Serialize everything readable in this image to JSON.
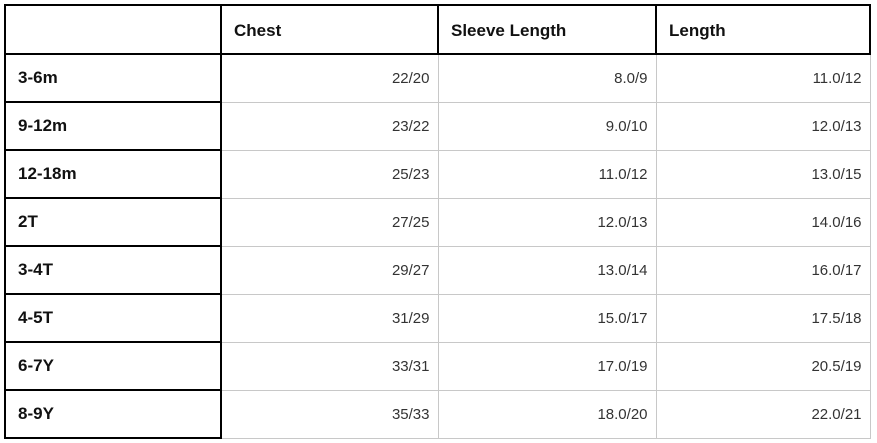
{
  "table": {
    "headers": [
      "",
      "Chest",
      "Sleeve Length",
      "Length"
    ],
    "rows": [
      {
        "size": "3-6m",
        "chest": "22/20",
        "sleeve": "8.0/9",
        "length": "11.0/12"
      },
      {
        "size": "9-12m",
        "chest": "23/22",
        "sleeve": "9.0/10",
        "length": "12.0/13"
      },
      {
        "size": "12-18m",
        "chest": "25/23",
        "sleeve": "11.0/12",
        "length": "13.0/15"
      },
      {
        "size": "2T",
        "chest": "27/25",
        "sleeve": "12.0/13",
        "length": "14.0/16"
      },
      {
        "size": "3-4T",
        "chest": "29/27",
        "sleeve": "13.0/14",
        "length": "16.0/17"
      },
      {
        "size": "4-5T",
        "chest": "31/29",
        "sleeve": "15.0/17",
        "length": "17.5/18"
      },
      {
        "size": "6-7Y",
        "chest": "33/31",
        "sleeve": "17.0/19",
        "length": "20.5/19"
      },
      {
        "size": "8-9Y",
        "chest": "35/33",
        "sleeve": "18.0/20",
        "length": "22.0/21"
      }
    ]
  }
}
